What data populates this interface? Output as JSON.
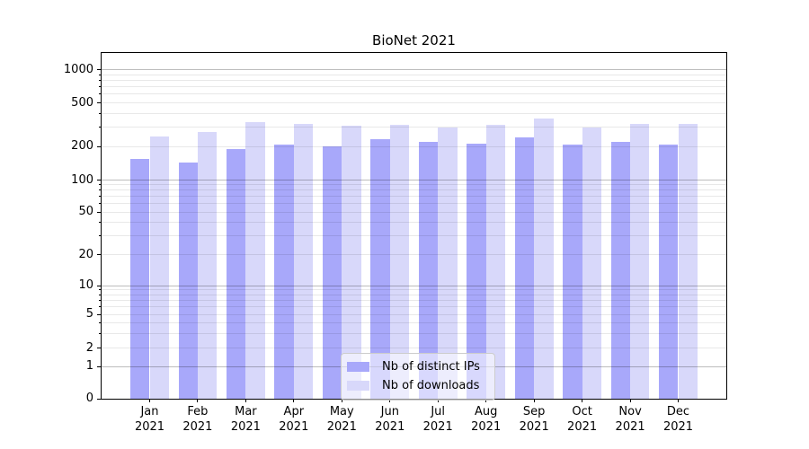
{
  "chart_data": {
    "type": "bar",
    "title": "BioNet 2021",
    "categories": [
      "Jan 2021",
      "Feb 2021",
      "Mar 2021",
      "Apr 2021",
      "May 2021",
      "Jun 2021",
      "Jul 2021",
      "Aug 2021",
      "Sep 2021",
      "Oct 2021",
      "Nov 2021",
      "Dec 2021"
    ],
    "series": [
      {
        "name": "Nb of distinct IPs",
        "color": "#a8a8fa",
        "values": [
          154,
          144,
          190,
          207,
          201,
          232,
          222,
          212,
          243,
          207,
          222,
          207
        ]
      },
      {
        "name": "Nb of downloads",
        "color": "#d8d8fa",
        "values": [
          245,
          272,
          333,
          322,
          309,
          314,
          296,
          315,
          357,
          299,
          319,
          322
        ]
      }
    ],
    "xlabel": "",
    "ylabel": "",
    "yscale": "log above 1, with 0 shown at axis base",
    "ylim": [
      0,
      1260
    ],
    "yticks": [
      0,
      1,
      2,
      5,
      10,
      20,
      50,
      100,
      200,
      500,
      1000
    ],
    "ytick_labels": [
      "0",
      "1",
      "2",
      "5",
      "10",
      "20",
      "50",
      "100",
      "200",
      "500",
      "1000"
    ],
    "major_grid_values": [
      1,
      10,
      100,
      1000
    ],
    "grid": "horizontal major and minor gridlines, drawn over bars",
    "legend": {
      "position": "inside axes, lower middle",
      "entries": [
        "Nb of distinct IPs",
        "Nb of downloads"
      ]
    }
  },
  "colors": {
    "bar_distinct_ips": "#a8a8fa",
    "bar_downloads": "#d8d8fa",
    "major_grid": "rgba(0,0,0,0.26)",
    "minor_grid": "rgba(0,0,0,0.09)",
    "axis_spine": "#000000",
    "legend_border": "#cccccc",
    "legend_background": "rgba(255,255,255,0.55)"
  }
}
